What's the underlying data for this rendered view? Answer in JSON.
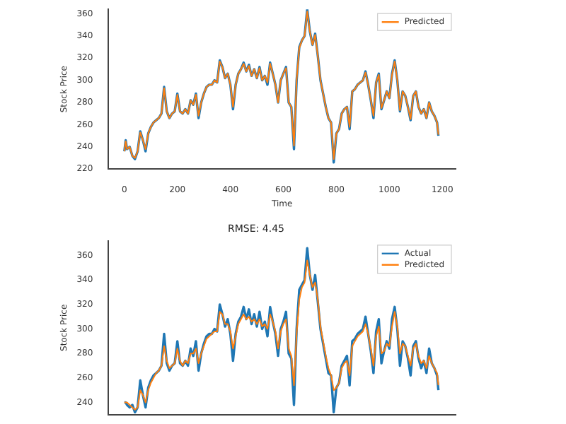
{
  "chart_data": [
    {
      "type": "line",
      "xlabel": "Time",
      "ylabel": "Stock Price",
      "xlim": [
        -60,
        1250
      ],
      "ylim": [
        220,
        364
      ],
      "xticks": [
        0,
        200,
        400,
        600,
        800,
        1000,
        1200
      ],
      "yticks": [
        220,
        240,
        260,
        280,
        300,
        320,
        340,
        360
      ],
      "grid": false,
      "legend": "top right",
      "marker": "none",
      "line_style": "solid",
      "x": [
        0,
        5,
        10,
        20,
        30,
        40,
        50,
        60,
        70,
        80,
        90,
        100,
        110,
        120,
        130,
        140,
        150,
        160,
        170,
        180,
        190,
        200,
        210,
        220,
        230,
        240,
        250,
        260,
        270,
        280,
        290,
        300,
        310,
        320,
        330,
        340,
        350,
        360,
        370,
        380,
        390,
        400,
        410,
        420,
        430,
        440,
        450,
        460,
        470,
        480,
        490,
        500,
        510,
        520,
        530,
        540,
        550,
        560,
        570,
        580,
        590,
        600,
        610,
        620,
        630,
        640,
        650,
        660,
        670,
        680,
        690,
        700,
        710,
        720,
        730,
        740,
        750,
        760,
        770,
        780,
        790,
        800,
        810,
        820,
        830,
        840,
        850,
        860,
        870,
        880,
        890,
        900,
        910,
        920,
        930,
        940,
        950,
        960,
        970,
        980,
        990,
        1000,
        1010,
        1020,
        1030,
        1040,
        1050,
        1060,
        1070,
        1080,
        1090,
        1100,
        1110,
        1120,
        1130,
        1140,
        1150,
        1160,
        1170,
        1180,
        1185
      ],
      "series": [
        {
          "color": "#1f77b4",
          "values": [
            236,
            246,
            238,
            240,
            232,
            229,
            236,
            254,
            246,
            236,
            252,
            258,
            262,
            264,
            266,
            270,
            294,
            272,
            266,
            270,
            272,
            288,
            272,
            270,
            274,
            270,
            282,
            278,
            288,
            266,
            280,
            288,
            294,
            296,
            296,
            300,
            298,
            318,
            312,
            302,
            306,
            296,
            274,
            296,
            306,
            310,
            316,
            308,
            314,
            304,
            310,
            302,
            312,
            300,
            304,
            296,
            316,
            306,
            296,
            280,
            300,
            306,
            312,
            280,
            276,
            238,
            300,
            330,
            336,
            340,
            364,
            344,
            332,
            342,
            322,
            300,
            288,
            276,
            266,
            262,
            226,
            252,
            256,
            270,
            274,
            276,
            256,
            290,
            292,
            296,
            298,
            300,
            308,
            296,
            282,
            266,
            298,
            306,
            274,
            282,
            290,
            284,
            306,
            318,
            300,
            272,
            290,
            286,
            276,
            264,
            286,
            290,
            276,
            270,
            274,
            266,
            280,
            272,
            268,
            262,
            250
          ]
        },
        {
          "name": "Predicted",
          "color": "#ff7f0e",
          "values": [
            236,
            245,
            238,
            240,
            232,
            230,
            236,
            253,
            246,
            238,
            252,
            258,
            262,
            264,
            266,
            270,
            293,
            272,
            266,
            270,
            272,
            287,
            272,
            270,
            274,
            270,
            282,
            278,
            287,
            268,
            280,
            288,
            294,
            296,
            296,
            300,
            298,
            317,
            312,
            302,
            306,
            296,
            276,
            296,
            306,
            310,
            315,
            308,
            313,
            304,
            310,
            302,
            311,
            300,
            304,
            298,
            315,
            306,
            296,
            280,
            300,
            306,
            311,
            280,
            276,
            241,
            300,
            329,
            336,
            340,
            362,
            344,
            332,
            341,
            322,
            300,
            288,
            276,
            266,
            262,
            229,
            252,
            256,
            270,
            274,
            276,
            258,
            290,
            292,
            296,
            298,
            300,
            307,
            296,
            282,
            268,
            298,
            305,
            275,
            282,
            290,
            284,
            305,
            317,
            300,
            273,
            290,
            286,
            276,
            265,
            286,
            290,
            276,
            270,
            274,
            266,
            280,
            272,
            268,
            262,
            251
          ]
        }
      ]
    },
    {
      "type": "line",
      "title": "RMSE: 4.45",
      "ylabel": "Stock Price",
      "xlim": [
        -60,
        1250
      ],
      "ylim": [
        230,
        372
      ],
      "yticks": [
        240,
        260,
        280,
        300,
        320,
        340,
        360
      ],
      "tick_labels": "y",
      "grid": false,
      "legend": "top right",
      "marker": "none",
      "line_style": "solid",
      "x": [
        0,
        5,
        10,
        20,
        30,
        40,
        50,
        60,
        70,
        80,
        90,
        100,
        110,
        120,
        130,
        140,
        150,
        160,
        170,
        180,
        190,
        200,
        210,
        220,
        230,
        240,
        250,
        260,
        270,
        280,
        290,
        300,
        310,
        320,
        330,
        340,
        350,
        360,
        370,
        380,
        390,
        400,
        410,
        420,
        430,
        440,
        450,
        460,
        470,
        480,
        490,
        500,
        510,
        520,
        530,
        540,
        550,
        560,
        570,
        580,
        590,
        600,
        610,
        620,
        630,
        640,
        650,
        660,
        670,
        680,
        690,
        700,
        710,
        720,
        730,
        740,
        750,
        760,
        770,
        780,
        790,
        800,
        810,
        820,
        830,
        840,
        850,
        860,
        870,
        880,
        890,
        900,
        910,
        920,
        930,
        940,
        950,
        960,
        970,
        980,
        990,
        1000,
        1010,
        1020,
        1030,
        1040,
        1050,
        1060,
        1070,
        1080,
        1090,
        1100,
        1110,
        1120,
        1130,
        1140,
        1150,
        1160,
        1170,
        1180,
        1185
      ],
      "series": [
        {
          "name": "Actual",
          "color": "#1f77b4",
          "values": [
            240,
            240,
            238,
            236,
            238,
            232,
            236,
            258,
            246,
            236,
            252,
            258,
            262,
            264,
            266,
            270,
            296,
            272,
            266,
            270,
            272,
            290,
            272,
            270,
            274,
            270,
            284,
            278,
            290,
            266,
            280,
            288,
            294,
            296,
            296,
            300,
            298,
            320,
            312,
            302,
            308,
            296,
            274,
            296,
            306,
            310,
            318,
            308,
            316,
            304,
            312,
            302,
            314,
            300,
            306,
            294,
            318,
            306,
            296,
            278,
            300,
            306,
            314,
            280,
            276,
            238,
            300,
            332,
            336,
            340,
            366,
            344,
            332,
            344,
            322,
            300,
            288,
            276,
            264,
            262,
            232,
            252,
            256,
            270,
            274,
            278,
            254,
            290,
            292,
            296,
            298,
            300,
            310,
            296,
            282,
            264,
            298,
            308,
            272,
            282,
            290,
            284,
            308,
            318,
            300,
            270,
            290,
            286,
            276,
            262,
            286,
            290,
            276,
            268,
            274,
            264,
            284,
            272,
            268,
            262,
            250
          ]
        },
        {
          "name": "Predicted",
          "color": "#ff7f0e",
          "values": [
            240,
            240,
            240,
            238,
            236,
            234,
            236,
            250,
            246,
            240,
            250,
            256,
            260,
            264,
            266,
            270,
            286,
            274,
            268,
            270,
            272,
            284,
            274,
            270,
            274,
            272,
            280,
            280,
            284,
            272,
            280,
            286,
            292,
            294,
            296,
            298,
            298,
            314,
            312,
            304,
            304,
            298,
            284,
            294,
            304,
            308,
            312,
            308,
            310,
            306,
            308,
            304,
            308,
            302,
            304,
            300,
            312,
            306,
            298,
            284,
            298,
            304,
            308,
            284,
            278,
            254,
            296,
            324,
            334,
            338,
            356,
            344,
            334,
            338,
            324,
            302,
            290,
            278,
            268,
            262,
            250,
            252,
            256,
            268,
            272,
            274,
            262,
            286,
            290,
            294,
            296,
            298,
            304,
            296,
            284,
            270,
            294,
            302,
            280,
            282,
            288,
            286,
            302,
            314,
            302,
            280,
            288,
            286,
            278,
            270,
            284,
            288,
            278,
            272,
            274,
            268,
            278,
            272,
            268,
            264,
            254
          ]
        }
      ]
    }
  ]
}
